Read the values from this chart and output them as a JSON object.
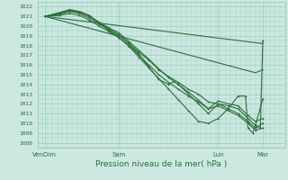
{
  "xlabel": "Pression niveau de la mer( hPa )",
  "bg_color": "#cce8e0",
  "grid_color": "#88c8b8",
  "line_color": "#2d6e3a",
  "ylim": [
    1007.5,
    1022.5
  ],
  "xlim": [
    0,
    1.0
  ],
  "xtick_labels": [
    "VenDim",
    "Sam",
    "Lun",
    "Mar"
  ],
  "xtick_positions": [
    0.03,
    0.33,
    0.73,
    0.91
  ],
  "series": [
    {
      "name": "smooth_dense1",
      "x": [
        0.03,
        0.09,
        0.13,
        0.17,
        0.21,
        0.25,
        0.29,
        0.33,
        0.37,
        0.41,
        0.45,
        0.49,
        0.53,
        0.57,
        0.61,
        0.65,
        0.69,
        0.73,
        0.77,
        0.81,
        0.85,
        0.88,
        0.91
      ],
      "y": [
        1021.0,
        1021.2,
        1021.5,
        1021.3,
        1020.8,
        1020.2,
        1019.6,
        1019.0,
        1018.2,
        1017.3,
        1016.5,
        1015.5,
        1014.8,
        1014.2,
        1013.5,
        1013.0,
        1012.2,
        1012.0,
        1011.5,
        1011.0,
        1010.2,
        1009.5,
        1010.0
      ],
      "marker": "+",
      "lw": 0.8
    },
    {
      "name": "smooth_dense2",
      "x": [
        0.03,
        0.09,
        0.13,
        0.17,
        0.21,
        0.25,
        0.29,
        0.33,
        0.37,
        0.41,
        0.45,
        0.49,
        0.53,
        0.57,
        0.61,
        0.65,
        0.69,
        0.73,
        0.77,
        0.81,
        0.85,
        0.88,
        0.91
      ],
      "y": [
        1021.0,
        1021.3,
        1021.6,
        1021.4,
        1021.0,
        1020.4,
        1019.8,
        1019.3,
        1018.4,
        1017.5,
        1016.6,
        1015.6,
        1014.7,
        1014.0,
        1013.2,
        1012.4,
        1011.5,
        1011.8,
        1011.3,
        1010.8,
        1010.0,
        1009.3,
        1009.5
      ],
      "marker": "+",
      "lw": 0.8
    },
    {
      "name": "smooth_dense3",
      "x": [
        0.03,
        0.09,
        0.13,
        0.17,
        0.21,
        0.25,
        0.29,
        0.33,
        0.37,
        0.41,
        0.45,
        0.49,
        0.53,
        0.55,
        0.57,
        0.61,
        0.65,
        0.69,
        0.73,
        0.77,
        0.81,
        0.85,
        0.88,
        0.91
      ],
      "y": [
        1021.0,
        1021.4,
        1021.7,
        1021.5,
        1021.1,
        1020.3,
        1019.7,
        1019.1,
        1018.2,
        1017.1,
        1015.8,
        1014.5,
        1014.0,
        1014.3,
        1014.0,
        1013.0,
        1012.0,
        1011.0,
        1012.0,
        1011.8,
        1011.5,
        1010.5,
        1009.8,
        1012.5
      ],
      "marker": "+",
      "lw": 0.8
    },
    {
      "name": "smooth_dense4",
      "x": [
        0.03,
        0.09,
        0.13,
        0.17,
        0.21,
        0.25,
        0.29,
        0.33,
        0.37,
        0.41,
        0.45,
        0.49,
        0.53,
        0.57,
        0.61,
        0.65,
        0.69,
        0.73,
        0.77,
        0.81,
        0.85,
        0.88,
        0.91
      ],
      "y": [
        1021.0,
        1021.1,
        1021.3,
        1021.1,
        1020.6,
        1020.0,
        1019.4,
        1018.8,
        1018.0,
        1017.0,
        1016.0,
        1015.0,
        1014.2,
        1013.5,
        1012.8,
        1012.2,
        1011.5,
        1012.3,
        1012.0,
        1011.8,
        1010.8,
        1010.2,
        1010.5
      ],
      "marker": "+",
      "lw": 0.8
    },
    {
      "name": "straight_high",
      "x": [
        0.03,
        0.91
      ],
      "y": [
        1021.0,
        1018.2
      ],
      "marker": null,
      "lw": 0.8
    },
    {
      "name": "straight_mid",
      "x": [
        0.03,
        0.88,
        0.91
      ],
      "y": [
        1021.0,
        1015.2,
        1015.5
      ],
      "marker": null,
      "lw": 0.8
    },
    {
      "name": "zig_end",
      "x": [
        0.03,
        0.13,
        0.17,
        0.21,
        0.25,
        0.29,
        0.33,
        0.37,
        0.41,
        0.45,
        0.49,
        0.53,
        0.57,
        0.61,
        0.65,
        0.69,
        0.73,
        0.77,
        0.81,
        0.84,
        0.85,
        0.87,
        0.88,
        0.9,
        0.91
      ],
      "y": [
        1021.0,
        1021.6,
        1021.5,
        1021.0,
        1020.3,
        1019.5,
        1018.8,
        1017.9,
        1016.8,
        1015.7,
        1014.6,
        1013.5,
        1012.4,
        1011.3,
        1010.2,
        1010.0,
        1010.5,
        1011.5,
        1012.8,
        1012.8,
        1009.5,
        1009.0,
        1009.8,
        1009.5,
        1018.5
      ],
      "marker": "+",
      "lw": 0.8
    }
  ]
}
